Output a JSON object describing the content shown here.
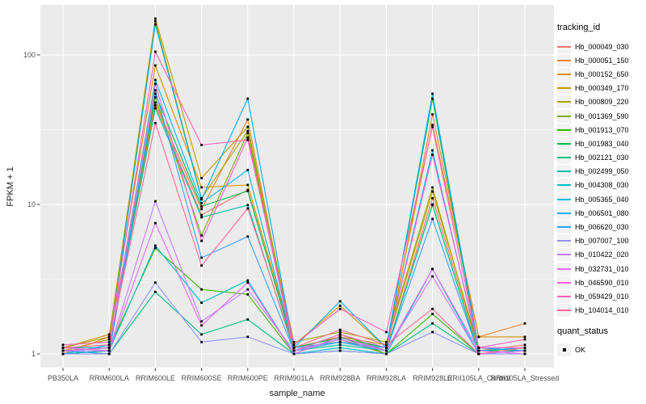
{
  "figure": {
    "background": "#ffffff",
    "panel_background": "#ebebeb",
    "grid_color": "#ffffff",
    "tick_color": "#333333",
    "tick_label_color": "#4d4d4d",
    "point_color": "#000000"
  },
  "axes": {
    "x_title": "sample_name",
    "y_title": "FPKM + 1"
  },
  "legend": {
    "tracking_title": "tracking_id",
    "quant_title": "quant_status",
    "quant_items": [
      {
        "label": "OK",
        "marker": "black-square"
      }
    ]
  },
  "chart_data": {
    "type": "line",
    "title": "",
    "xlabel": "sample_name",
    "ylabel": "FPKM + 1",
    "y_scale": "log10",
    "y_ticks": [
      1,
      10,
      100
    ],
    "y_minor_ticks": [
      3.1623,
      31.623
    ],
    "ylim": [
      0.83,
      220
    ],
    "grid": true,
    "legend_position": "right",
    "point_marker": "filled-black-square",
    "quant_status": "OK",
    "categories": [
      "PB350LA",
      "RRIM600LA",
      "RRIM600LE",
      "RRIM600SE",
      "RRIM600PE",
      "RRIM901LA",
      "RRIM928BA",
      "RRIM928LA",
      "RRIM928LE",
      "RRII105LA_Control",
      "RRII105LA_Stressed"
    ],
    "series": [
      {
        "name": "Hb_000049_030",
        "color": "#F8766D",
        "values": [
          1.05,
          1.1,
          46,
          8.5,
          12.5,
          1.1,
          1.2,
          1.05,
          11.0,
          1.05,
          1.15
        ]
      },
      {
        "name": "Hb_000051_150",
        "color": "#EA8331",
        "values": [
          1.0,
          1.3,
          48,
          9.3,
          37,
          1.05,
          1.25,
          1.0,
          40,
          1.3,
          1.6
        ]
      },
      {
        "name": "Hb_000152_650",
        "color": "#D89000",
        "values": [
          1.1,
          1.35,
          85,
          13.0,
          13.5,
          1.15,
          2.1,
          1.1,
          34,
          1.3,
          1.3
        ]
      },
      {
        "name": "Hb_000349_170",
        "color": "#C09B00",
        "values": [
          1.05,
          1.25,
          175,
          15.0,
          33,
          1.1,
          1.3,
          1.15,
          12.2,
          1.1,
          1.05
        ]
      },
      {
        "name": "Hb_000809_220",
        "color": "#A3A500",
        "values": [
          1.1,
          1.3,
          168,
          11.0,
          31,
          1.2,
          1.4,
          1.2,
          13.0,
          1.05,
          1.1
        ]
      },
      {
        "name": "Hb_001369_590",
        "color": "#7CAE00",
        "values": [
          1.0,
          1.05,
          52,
          6.2,
          30,
          1.05,
          1.35,
          1.05,
          10.0,
          1.0,
          1.05
        ]
      },
      {
        "name": "Hb_001913_070",
        "color": "#39B600",
        "values": [
          1.05,
          1.1,
          5.1,
          2.7,
          2.5,
          1.0,
          1.3,
          1.0,
          1.85,
          1.0,
          1.0
        ]
      },
      {
        "name": "Hb_001983_040",
        "color": "#00BB4E",
        "values": [
          1.0,
          1.05,
          55,
          9.7,
          12.3,
          1.1,
          1.28,
          1.1,
          51,
          1.05,
          1.05
        ]
      },
      {
        "name": "Hb_002121_030",
        "color": "#00BF7D",
        "values": [
          1.05,
          1.0,
          2.6,
          1.35,
          1.7,
          1.0,
          1.05,
          1.0,
          1.6,
          1.0,
          1.0
        ]
      },
      {
        "name": "Hb_002499_050",
        "color": "#00C1A3",
        "values": [
          1.1,
          1.1,
          44,
          8.2,
          9.9,
          1.05,
          1.15,
          1.05,
          9.9,
          1.0,
          1.05
        ]
      },
      {
        "name": "Hb_004308_030",
        "color": "#00BFC4",
        "values": [
          1.0,
          1.05,
          5.3,
          2.2,
          3.1,
          1.0,
          1.1,
          1.0,
          3.7,
          1.0,
          1.0
        ]
      },
      {
        "name": "Hb_005365_040",
        "color": "#00BAE0",
        "values": [
          1.05,
          1.1,
          68,
          10.2,
          17,
          1.1,
          1.2,
          1.1,
          23,
          1.05,
          1.1
        ]
      },
      {
        "name": "Hb_006501_080",
        "color": "#00B0F6",
        "values": [
          1.0,
          1.15,
          160,
          10.8,
          51,
          1.1,
          2.25,
          1.1,
          55,
          1.1,
          1.05
        ]
      },
      {
        "name": "Hb_006620_030",
        "color": "#35A2FF",
        "values": [
          1.05,
          1.0,
          58,
          4.4,
          6.1,
          1.05,
          1.2,
          1.05,
          8.0,
          1.0,
          1.0
        ]
      },
      {
        "name": "Hb_007007_100",
        "color": "#9590FF",
        "values": [
          1.0,
          1.0,
          3.0,
          1.2,
          1.3,
          1.0,
          1.05,
          1.0,
          1.4,
          1.0,
          1.0
        ]
      },
      {
        "name": "Hb_010422_020",
        "color": "#C77CFF",
        "values": [
          1.05,
          1.05,
          10.5,
          1.65,
          2.7,
          1.05,
          1.25,
          1.05,
          3.3,
          1.0,
          1.05
        ]
      },
      {
        "name": "Hb_032731_010",
        "color": "#E76BF3",
        "values": [
          1.1,
          1.05,
          7.5,
          1.55,
          3.0,
          1.0,
          1.3,
          1.05,
          3.7,
          1.05,
          1.0
        ]
      },
      {
        "name": "Hb_046590_010",
        "color": "#FA62DB",
        "values": [
          1.05,
          1.1,
          64,
          5.7,
          28,
          1.05,
          1.35,
          1.1,
          21.5,
          1.1,
          1.1
        ]
      },
      {
        "name": "Hb_059429_010",
        "color": "#FF62BC",
        "values": [
          1.15,
          1.2,
          105,
          25,
          27,
          1.15,
          2.0,
          1.4,
          33,
          1.1,
          1.25
        ]
      },
      {
        "name": "Hb_104014_010",
        "color": "#FF6A98",
        "values": [
          1.1,
          1.15,
          35,
          3.9,
          9.4,
          1.1,
          1.45,
          1.15,
          2.0,
          1.0,
          1.1
        ]
      }
    ]
  }
}
